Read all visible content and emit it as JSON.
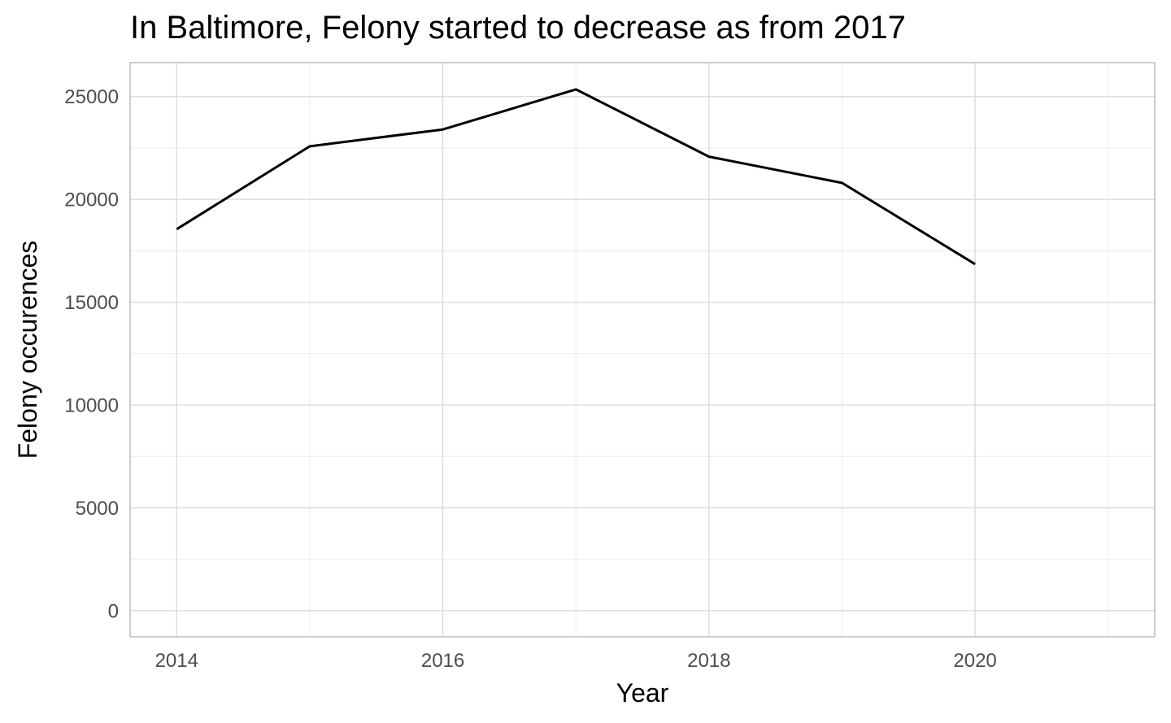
{
  "chart_data": {
    "type": "line",
    "title": "In Baltimore, Felony started to decrease as from 2017",
    "xlabel": "Year",
    "ylabel": "Felony occurences",
    "x": [
      2014,
      2015,
      2016,
      2017,
      2018,
      2019,
      2020
    ],
    "series": [
      {
        "values": [
          18550,
          22580,
          23400,
          25350,
          22080,
          20800,
          16850
        ],
        "color": "#000000"
      }
    ],
    "xlim": [
      2013.65,
      2021.35
    ],
    "ylim": [
      -1270,
      26650
    ],
    "x_major_ticks": [
      2014,
      2016,
      2018,
      2020
    ],
    "x_tick_labels": [
      "2014",
      "2016",
      "2018",
      "2020"
    ],
    "x_minor_ticks": [
      2015,
      2017,
      2019,
      2021
    ],
    "y_major_ticks": [
      0,
      5000,
      10000,
      15000,
      20000,
      25000
    ],
    "y_tick_labels": [
      "0",
      "5000",
      "10000",
      "15000",
      "20000",
      "25000"
    ],
    "y_minor_ticks": [
      2500,
      7500,
      12500,
      17500,
      22500
    ],
    "grid": true,
    "legend": "none",
    "colors": {
      "grid_major": "#d9d9d9",
      "grid_minor": "#ececec",
      "panel_border": "#b3b3b3",
      "tick_text": "#4d4d4d"
    }
  }
}
